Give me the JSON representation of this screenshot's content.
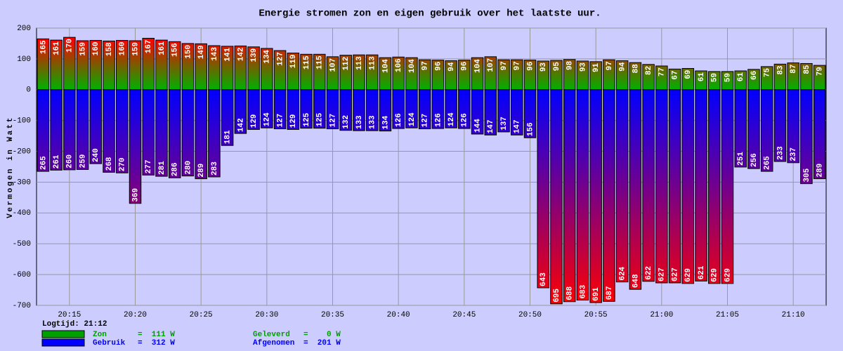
{
  "chart_data": {
    "type": "bar",
    "title": "Energie stromen zon en eigen gebruik over het laatste uur.",
    "ylabel": "Vermogen in Watt",
    "categories": [
      null,
      null,
      "20:15",
      null,
      null,
      null,
      null,
      "20:20",
      null,
      null,
      null,
      null,
      "20:25",
      null,
      null,
      null,
      null,
      "20:30",
      null,
      null,
      null,
      null,
      "20:35",
      null,
      null,
      null,
      null,
      "20:40",
      null,
      null,
      null,
      null,
      "20:45",
      null,
      null,
      null,
      null,
      "20:50",
      null,
      null,
      null,
      null,
      "20:55",
      null,
      null,
      null,
      null,
      "21:00",
      null,
      null,
      null,
      null,
      "21:05",
      null,
      null,
      null,
      null,
      "21:10",
      null,
      null
    ],
    "series": [
      {
        "name": "Zon",
        "color": "#00a000",
        "legend_value": "=  111 W",
        "values": [
          165,
          161,
          170,
          159,
          160,
          158,
          160,
          159,
          167,
          161,
          156,
          150,
          149,
          143,
          141,
          142,
          139,
          134,
          127,
          119,
          115,
          115,
          107,
          112,
          113,
          113,
          104,
          106,
          104,
          97,
          96,
          94,
          96,
          104,
          107,
          97,
          97,
          96,
          93,
          95,
          98,
          93,
          91,
          97,
          94,
          88,
          82,
          77,
          67,
          69,
          61,
          59,
          59,
          61,
          66,
          75,
          83,
          87,
          85,
          79
        ]
      },
      {
        "name": "Gebruik",
        "color": "#0000ff",
        "legend_value": "=  312 W",
        "values": [
          -265,
          -261,
          -260,
          -259,
          -240,
          -268,
          -270,
          -369,
          -277,
          -281,
          -286,
          -280,
          -289,
          -283,
          -181,
          -142,
          -129,
          -124,
          -127,
          -129,
          -125,
          -125,
          -127,
          -132,
          -133,
          -133,
          -134,
          -126,
          -124,
          -127,
          -126,
          -124,
          -126,
          -144,
          -147,
          -137,
          -147,
          -156,
          -643,
          -695,
          -688,
          -683,
          -691,
          -687,
          -624,
          -648,
          -622,
          -627,
          -627,
          -629,
          -621,
          -629,
          -629,
          -251,
          -256,
          -265,
          -233,
          -237,
          -305,
          -289
        ],
        "value_labels": [
          "265",
          "261",
          "260",
          "259",
          "240",
          "268",
          "270",
          "369",
          "277",
          "281",
          "286",
          "280",
          "289",
          "283",
          "181",
          "142",
          "129",
          "124",
          "127",
          "129",
          "125",
          "125",
          "127",
          "132",
          "133",
          "133",
          "134",
          "126",
          "124",
          "127",
          "126",
          "124",
          "126",
          "144",
          "147",
          "137",
          "147",
          "156",
          "643",
          "695",
          "688",
          "683",
          "691",
          "687",
          "624",
          "648",
          "622",
          "627",
          "627",
          "629",
          "621",
          "629",
          "629",
          "251",
          "256",
          "265",
          "233",
          "237",
          "305",
          "289"
        ]
      }
    ],
    "ylim": [
      -700,
      200
    ],
    "yticks": [
      -700,
      -600,
      -500,
      -400,
      -300,
      -200,
      -100,
      0,
      100,
      200
    ],
    "grid": true,
    "logtijd": "Logtijd: 21:12",
    "extra_legend": [
      {
        "name": "Geleverd",
        "value": "=    0 W",
        "color": "#00a000"
      },
      {
        "name": "Afgenomen",
        "value": "=  201 W",
        "color": "#0000ff"
      }
    ]
  }
}
